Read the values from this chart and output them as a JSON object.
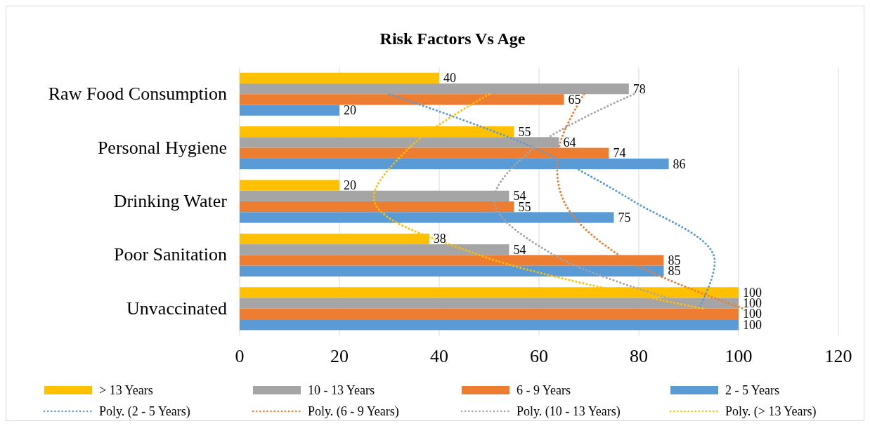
{
  "chart_data": {
    "type": "bar",
    "orientation": "horizontal",
    "title": "Risk Factors Vs Age",
    "categories": [
      "Raw Food Consumption",
      "Personal Hygiene",
      "Drinking Water",
      "Poor Sanitation",
      "Unvaccinated"
    ],
    "series": [
      {
        "name": "> 13 Years",
        "color": "#ffc000",
        "values": [
          40,
          55,
          20,
          38,
          100
        ],
        "value_labels": [
          "40",
          "55",
          "20",
          "38",
          "100"
        ]
      },
      {
        "name": "10 - 13 Years",
        "color": "#a5a5a5",
        "values": [
          78,
          64,
          54,
          54,
          100
        ],
        "value_labels": [
          "78",
          "64",
          "54",
          "54",
          "100"
        ]
      },
      {
        "name": "6 - 9 Years",
        "color": "#ed7d31",
        "values": [
          65,
          74,
          55,
          85,
          100
        ],
        "value_labels": [
          "65",
          "74",
          "55",
          "85",
          "100"
        ]
      },
      {
        "name": "2 - 5 Years",
        "color": "#5b9bd5",
        "values": [
          20,
          86,
          75,
          85,
          100
        ],
        "value_labels": [
          "20",
          "86",
          "75",
          "85",
          "100"
        ]
      },
      {
        "name": "Poly. (2 - 5 Years)",
        "type": "line",
        "line_style": "dotted",
        "color": "#5b9bd5",
        "values": [
          30,
          59,
          79,
          95,
          92
        ]
      },
      {
        "name": "Poly. (6 - 9 Years)",
        "type": "line",
        "line_style": "dotted",
        "color": "#ed7d31",
        "values": [
          69,
          64,
          65,
          76,
          101
        ]
      },
      {
        "name": "Poly. (10 - 13 Years)",
        "type": "line",
        "line_style": "dotted",
        "color": "#a5a5a5",
        "values": [
          79,
          59,
          51,
          63,
          93
        ]
      },
      {
        "name": "Poly. (> 13 Years)",
        "type": "line",
        "line_style": "dotted",
        "color": "#ffc000",
        "values": [
          50,
          34,
          27,
          48,
          93
        ]
      }
    ],
    "xlim": [
      0,
      120
    ],
    "xticks": [
      0,
      20,
      40,
      60,
      80,
      100,
      120
    ],
    "grid": "x",
    "legend": "bottom"
  }
}
